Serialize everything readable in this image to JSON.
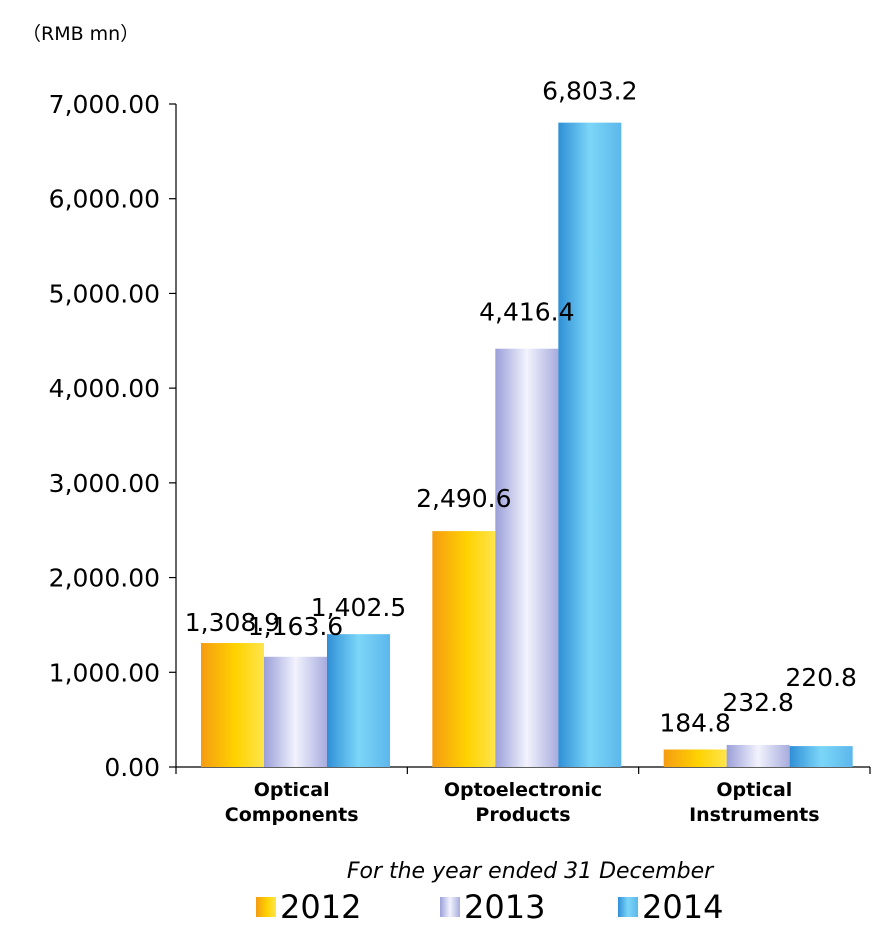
{
  "chart_data": {
    "type": "bar",
    "unit_label": "（RMB mn）",
    "xlabel": "For the year ended 31 December",
    "ylim": [
      0,
      7000
    ],
    "yticks": [
      0,
      1000,
      2000,
      3000,
      4000,
      5000,
      6000,
      7000
    ],
    "ytick_labels": [
      "0.00",
      "1,000.00",
      "2,000.00",
      "3,000.00",
      "4,000.00",
      "5,000.00",
      "6,000.00",
      "7,000.00"
    ],
    "categories": [
      [
        "Optical",
        "Components"
      ],
      [
        "Optoelectronic",
        "Products"
      ],
      [
        "Optical",
        "Instruments"
      ]
    ],
    "series": [
      {
        "name": "2012",
        "values": [
          1308.9,
          2490.6,
          184.8
        ],
        "labels": [
          "1,308.9",
          "2,490.6",
          "184.8"
        ],
        "color": "#FFC000"
      },
      {
        "name": "2013",
        "values": [
          1163.6,
          4416.4,
          232.8
        ],
        "labels": [
          "1,163.6",
          "4,416.4",
          "232.8"
        ],
        "color": "#B4B8E6"
      },
      {
        "name": "2014",
        "values": [
          1402.5,
          6803.2,
          220.8
        ],
        "labels": [
          "1,402.5",
          "6,803.2",
          "220.8"
        ],
        "color": "#4BAEE8"
      }
    ],
    "legend_position": "bottom",
    "grid": false
  }
}
